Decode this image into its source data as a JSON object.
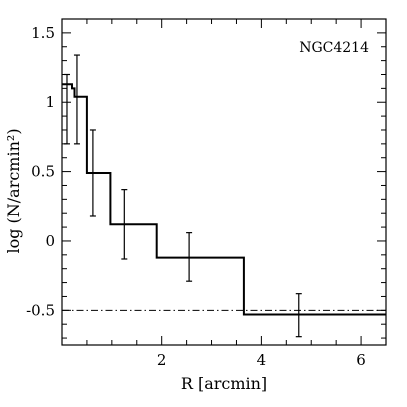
{
  "chart_data": {
    "type": "line",
    "title": "",
    "annotation": "NGC4214",
    "xlabel": "R [arcmin]",
    "ylabel": "log (N/arcmin²)",
    "xlim": [
      0,
      6.5
    ],
    "ylim": [
      -0.75,
      1.6
    ],
    "x_ticks": [
      2,
      4,
      6
    ],
    "x_tick_labels": [
      "2",
      "4",
      "6"
    ],
    "y_ticks": [
      -0.5,
      0,
      0.5,
      1,
      1.5
    ],
    "y_tick_labels": [
      "-0.5",
      "0",
      "0.5",
      "1",
      "1.5"
    ],
    "x_minor_step": 0.5,
    "y_minor_step": 0.1,
    "grid": false,
    "histogram_bins": [
      {
        "x0": 0.0,
        "x1": 0.2,
        "y": 1.13
      },
      {
        "x0": 0.2,
        "x1": 0.25,
        "y": 1.1
      },
      {
        "x0": 0.25,
        "x1": 0.5,
        "y": 1.04
      },
      {
        "x0": 0.5,
        "x1": 0.97,
        "y": 0.49
      },
      {
        "x0": 0.97,
        "x1": 1.9,
        "y": 0.12
      },
      {
        "x0": 1.9,
        "x1": 3.65,
        "y": -0.12
      },
      {
        "x0": 3.65,
        "x1": 6.5,
        "y": -0.53
      }
    ],
    "error_bars": [
      {
        "x": 0.1,
        "y": 1.0,
        "ylow": 0.7,
        "yhigh": 1.2
      },
      {
        "x": 0.3,
        "y": 1.0,
        "ylow": 0.7,
        "yhigh": 1.34
      },
      {
        "x": 0.62,
        "y": 0.49,
        "ylow": 0.18,
        "yhigh": 0.8
      },
      {
        "x": 1.25,
        "y": 0.12,
        "ylow": -0.13,
        "yhigh": 0.37
      },
      {
        "x": 2.55,
        "y": -0.12,
        "ylow": -0.29,
        "yhigh": 0.06
      },
      {
        "x": 4.75,
        "y": -0.53,
        "ylow": -0.69,
        "yhigh": -0.38
      }
    ],
    "background_level": {
      "y": -0.5,
      "style": "dash-dot"
    }
  }
}
